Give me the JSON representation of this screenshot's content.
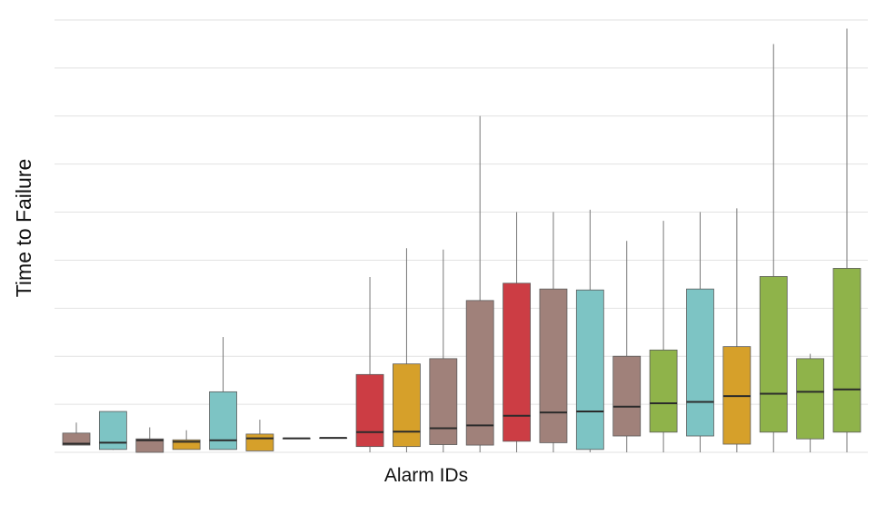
{
  "chart_data": {
    "type": "box",
    "title": "",
    "xlabel": "Alarm IDs",
    "ylabel": "Time to Failure",
    "ylim": [
      0,
      9
    ],
    "grid": true,
    "legend": "none",
    "boxes": [
      {
        "color": "#a0817a",
        "whisker_low": 0.15,
        "q1": 0.15,
        "median": 0.18,
        "q3": 0.4,
        "whisker_high": 0.62
      },
      {
        "color": "#7dc4c4",
        "whisker_low": 0.05,
        "q1": 0.06,
        "median": 0.2,
        "q3": 0.85,
        "whisker_high": 0.85
      },
      {
        "color": "#a0817a",
        "whisker_low": 0.0,
        "q1": 0.0,
        "median": 0.25,
        "q3": 0.28,
        "whisker_high": 0.52
      },
      {
        "color": "#d6a02a",
        "whisker_low": 0.06,
        "q1": 0.06,
        "median": 0.22,
        "q3": 0.26,
        "whisker_high": 0.46
      },
      {
        "color": "#7dc4c4",
        "whisker_low": 0.06,
        "q1": 0.06,
        "median": 0.25,
        "q3": 1.26,
        "whisker_high": 2.4
      },
      {
        "color": "#d6a02a",
        "whisker_low": 0.03,
        "q1": 0.03,
        "median": 0.29,
        "q3": 0.38,
        "whisker_high": 0.68
      },
      {
        "color": "#555555",
        "whisker_low": 0.29,
        "q1": 0.29,
        "median": 0.29,
        "q3": 0.29,
        "whisker_high": 0.29
      },
      {
        "color": "#555555",
        "whisker_low": 0.3,
        "q1": 0.3,
        "median": 0.3,
        "q3": 0.3,
        "whisker_high": 0.3
      },
      {
        "color": "#cc3d44",
        "whisker_low": 0.0,
        "q1": 0.12,
        "median": 0.42,
        "q3": 1.62,
        "whisker_high": 3.65
      },
      {
        "color": "#d6a02a",
        "whisker_low": 0.0,
        "q1": 0.12,
        "median": 0.43,
        "q3": 1.84,
        "whisker_high": 4.25
      },
      {
        "color": "#a0817a",
        "whisker_low": 0.0,
        "q1": 0.16,
        "median": 0.5,
        "q3": 1.95,
        "whisker_high": 4.22
      },
      {
        "color": "#a0817a",
        "whisker_low": 0.0,
        "q1": 0.15,
        "median": 0.56,
        "q3": 3.16,
        "whisker_high": 7.0
      },
      {
        "color": "#cc3d44",
        "whisker_low": 0.0,
        "q1": 0.23,
        "median": 0.76,
        "q3": 3.52,
        "whisker_high": 5.0
      },
      {
        "color": "#a0817a",
        "whisker_low": 0.0,
        "q1": 0.2,
        "median": 0.83,
        "q3": 3.4,
        "whisker_high": 5.0
      },
      {
        "color": "#7dc4c4",
        "whisker_low": 0.0,
        "q1": 0.06,
        "median": 0.85,
        "q3": 3.38,
        "whisker_high": 5.05
      },
      {
        "color": "#a0817a",
        "whisker_low": 0.0,
        "q1": 0.34,
        "median": 0.95,
        "q3": 2.0,
        "whisker_high": 4.4
      },
      {
        "color": "#8fb34a",
        "whisker_low": 0.0,
        "q1": 0.42,
        "median": 1.02,
        "q3": 2.13,
        "whisker_high": 4.82
      },
      {
        "color": "#7dc4c4",
        "whisker_low": 0.0,
        "q1": 0.34,
        "median": 1.05,
        "q3": 3.4,
        "whisker_high": 5.0
      },
      {
        "color": "#d6a02a",
        "whisker_low": 0.0,
        "q1": 0.17,
        "median": 1.17,
        "q3": 2.2,
        "whisker_high": 5.08
      },
      {
        "color": "#8fb34a",
        "whisker_low": 0.0,
        "q1": 0.42,
        "median": 1.22,
        "q3": 3.66,
        "whisker_high": 8.5
      },
      {
        "color": "#8fb34a",
        "whisker_low": 0.0,
        "q1": 0.28,
        "median": 1.26,
        "q3": 1.95,
        "whisker_high": 2.05
      },
      {
        "color": "#8fb34a",
        "whisker_low": 0.0,
        "q1": 0.42,
        "median": 1.31,
        "q3": 3.83,
        "whisker_high": 8.82
      }
    ]
  }
}
